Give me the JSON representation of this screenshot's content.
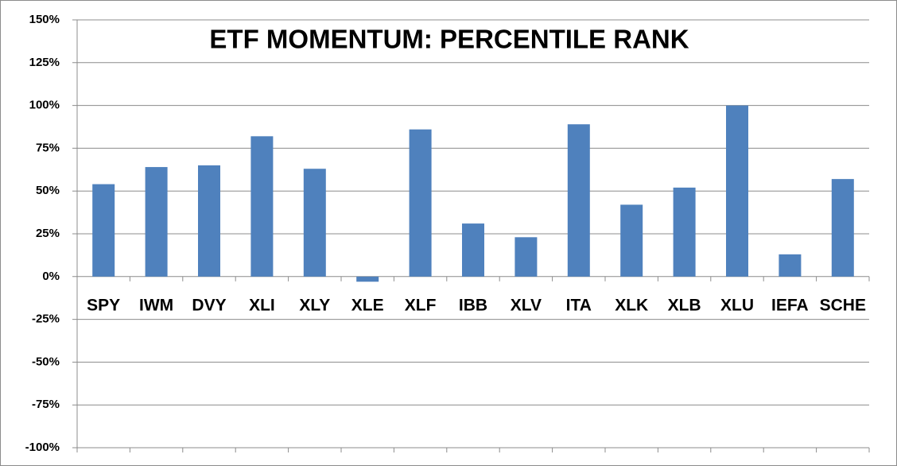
{
  "chart_data": {
    "type": "bar",
    "title": "ETF MOMENTUM: PERCENTILE RANK",
    "categories": [
      "SPY",
      "IWM",
      "DVY",
      "XLI",
      "XLY",
      "XLE",
      "XLF",
      "IBB",
      "XLV",
      "ITA",
      "XLK",
      "XLB",
      "XLU",
      "IEFA",
      "SCHE"
    ],
    "values": [
      54,
      64,
      65,
      82,
      63,
      -3,
      86,
      31,
      23,
      89,
      42,
      52,
      100,
      13,
      57
    ],
    "color": "#4f81bd",
    "ylim": [
      -100,
      150
    ],
    "yticks": [
      {
        "value": -100,
        "label": "-100%"
      },
      {
        "value": -75,
        "label": "-75%"
      },
      {
        "value": -50,
        "label": "-50%"
      },
      {
        "value": -25,
        "label": "-25%"
      },
      {
        "value": 0,
        "label": "0%"
      },
      {
        "value": 25,
        "label": "25%"
      },
      {
        "value": 50,
        "label": "50%"
      },
      {
        "value": 75,
        "label": "75%"
      },
      {
        "value": 100,
        "label": "100%"
      },
      {
        "value": 125,
        "label": "125%"
      },
      {
        "value": 150,
        "label": "150%"
      }
    ],
    "grid": true
  }
}
